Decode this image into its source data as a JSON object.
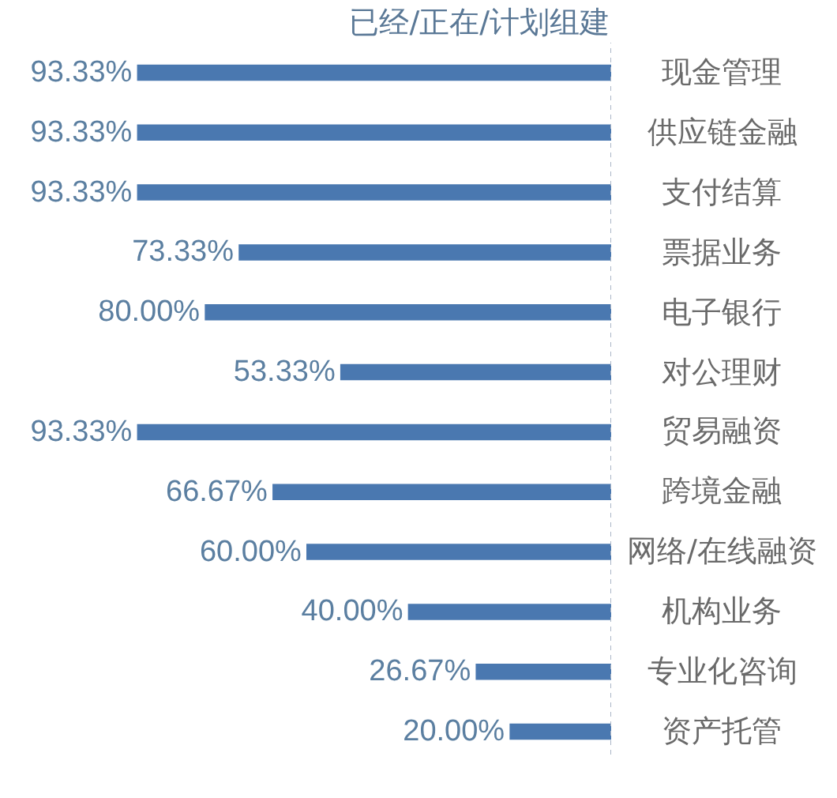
{
  "chart_data": {
    "type": "bar",
    "orientation": "horizontal",
    "title": "已经/正在/计划组建",
    "categories": [
      "现金管理",
      "供应链金融",
      "支付结算",
      "票据业务",
      "电子银行",
      "对公理财",
      "贸易融资",
      "跨境金融",
      "网络/在线融资",
      "机构业务",
      "专业化咨询",
      "资产托管"
    ],
    "values": [
      93.33,
      93.33,
      93.33,
      73.33,
      80.0,
      53.33,
      93.33,
      66.67,
      60.0,
      40.0,
      26.67,
      20.0
    ],
    "value_labels": [
      "93.33%",
      "93.33%",
      "93.33%",
      "73.33%",
      "80.00%",
      "53.33%",
      "93.33%",
      "66.67%",
      "60.00%",
      "40.00%",
      "26.67%",
      "20.00%"
    ],
    "color": "#4a78b0",
    "xlim": [
      120,
      0
    ],
    "tick_labels": "y",
    "ref_lines": [
      {
        "axis": "x",
        "value": 0,
        "color": "#aab6c6",
        "line_style": "dotted"
      }
    ]
  }
}
